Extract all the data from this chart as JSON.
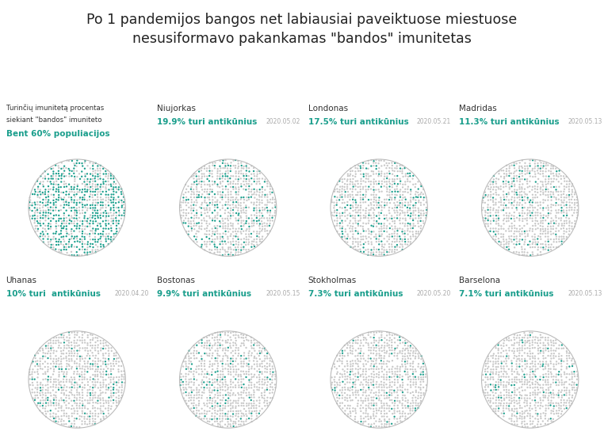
{
  "title": "Po 1 pandemijos bangos net labiausiai paveiktuose miestuose\nnesusiformavo pakankamas \"bandos\" imunitetas",
  "title_fontsize": 12.5,
  "teal_color": "#1a9e8c",
  "gray_color": "#c8c8c8",
  "bar_bg_color": "#d0d0d0",
  "date_color": "#aaaaaa",
  "panels": [
    {
      "city": "Turinčių imunitetą procentas\nsiekiant \"bandos\" imuniteto",
      "pct_label": "Bent 60% populiacijos",
      "date": "",
      "percent": 60.0,
      "is_reference": true
    },
    {
      "city": "Niujorkas",
      "pct_label": "19.9% turi antikūnius",
      "date": "2020.05.02",
      "percent": 19.9,
      "is_reference": false
    },
    {
      "city": "Londonas",
      "pct_label": "17.5% turi antikūnius",
      "date": "2020.05.21",
      "percent": 17.5,
      "is_reference": false
    },
    {
      "city": "Madridas",
      "pct_label": "11.3% turi antikūnius",
      "date": "2020.05.13",
      "percent": 11.3,
      "is_reference": false
    },
    {
      "city": "Uhanas",
      "pct_label": "10% turi  antikūnius",
      "date": "2020.04.20",
      "percent": 10.0,
      "is_reference": false
    },
    {
      "city": "Bostonas",
      "pct_label": "9.9% turi antikūnius",
      "date": "2020.05.15",
      "percent": 9.9,
      "is_reference": false
    },
    {
      "city": "Stokholmas",
      "pct_label": "7.3% turi antikūnius",
      "date": "2020.05.20",
      "percent": 7.3,
      "is_reference": false
    },
    {
      "city": "Barselona",
      "pct_label": "7.1% turi antikūnius",
      "date": "2020.05.13",
      "percent": 7.1,
      "is_reference": false
    }
  ],
  "n_dots": 800,
  "background_color": "#ffffff"
}
